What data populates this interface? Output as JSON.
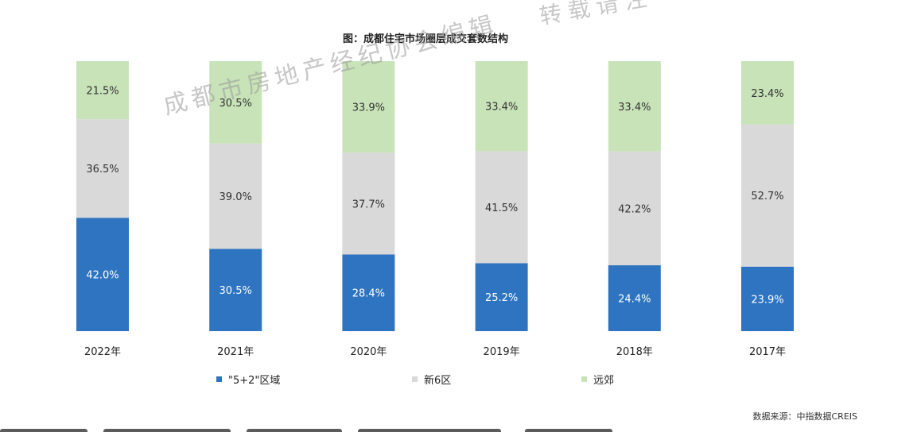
{
  "chart_data": {
    "type": "bar",
    "stacked": true,
    "percent": true,
    "title": "图：成都住宅市场圈层成交套数结构",
    "categories": [
      "2022年",
      "2021年",
      "2020年",
      "2019年",
      "2018年",
      "2017年"
    ],
    "series": [
      {
        "name": "\"5+2\"区域",
        "color": "#2e74c0",
        "values": [
          42.0,
          30.5,
          28.4,
          25.2,
          24.4,
          23.9
        ],
        "labels": [
          "42.0%",
          "30.5%",
          "28.4%",
          "25.2%",
          "24.4%",
          "23.9%"
        ]
      },
      {
        "name": "新6区",
        "color": "#d9d9da",
        "values": [
          36.5,
          39.0,
          37.7,
          41.5,
          42.2,
          52.7
        ],
        "labels": [
          "36.5%",
          "39.0%",
          "37.7%",
          "41.5%",
          "42.2%",
          "52.7%"
        ]
      },
      {
        "name": "远郊",
        "color": "#c8e3b8",
        "values": [
          21.5,
          30.5,
          33.9,
          33.4,
          33.4,
          23.4
        ],
        "labels": [
          "21.5%",
          "30.5%",
          "33.9%",
          "33.4%",
          "33.4%",
          "23.4%"
        ]
      }
    ],
    "ylim": [
      0,
      100
    ],
    "legend": "bottom",
    "source": "数据来源：中指数据CREIS"
  },
  "watermark": {
    "line1": "成都市房地产经纪协会编辑",
    "line2": "转载请注"
  }
}
